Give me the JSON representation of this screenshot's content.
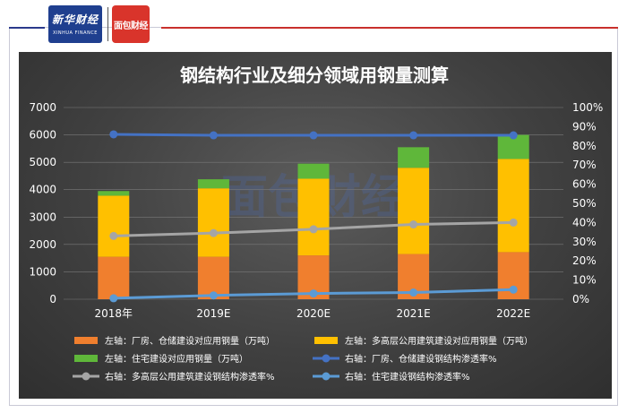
{
  "branding": {
    "logo_left_text": "新华财经",
    "logo_left_sub": "XINHUA FINANCE",
    "logo_right_text": "面包财经",
    "watermark": "面包财经"
  },
  "chart_data": {
    "type": "bar",
    "title": "钢结构行业及细分领域用钢量测算",
    "categories": [
      "2018年",
      "2019E",
      "2020E",
      "2021E",
      "2022E"
    ],
    "y_left": {
      "min": 0,
      "max": 7000,
      "ticks": [
        0,
        1000,
        2000,
        3000,
        4000,
        5000,
        6000,
        7000
      ]
    },
    "y_right": {
      "min": 0,
      "max": 100,
      "ticks": [
        "0%",
        "10%",
        "20%",
        "30%",
        "40%",
        "50%",
        "60%",
        "70%",
        "80%",
        "90%",
        "100%"
      ]
    },
    "stacked_bars": [
      {
        "name": "左轴：厂房、仓储建设对应用钢量（万吨）",
        "color": "#f07f2e",
        "values": [
          1550,
          1550,
          1600,
          1650,
          1720
        ]
      },
      {
        "name": "左轴：多高层公用建筑建设对应用钢量（万吨）",
        "color": "#ffc000",
        "values": [
          2230,
          2500,
          2800,
          3150,
          3400
        ]
      },
      {
        "name": "左轴：住宅建设对应用钢量（万吨）",
        "color": "#5fb73a",
        "values": [
          170,
          330,
          550,
          750,
          880
        ]
      }
    ],
    "lines": [
      {
        "name": "右轴：厂房、仓储建设钢结构渗透率%",
        "color": "#4472c4",
        "values": [
          86,
          85.5,
          85.5,
          85.5,
          85.5
        ]
      },
      {
        "name": "右轴：多高层公用建筑建设钢结构渗透率%",
        "color": "#a5a5a5",
        "values": [
          33,
          34.5,
          36.5,
          39,
          40
        ]
      },
      {
        "name": "右轴：住宅建设钢结构渗透率%",
        "color": "#5b9bd5",
        "values": [
          0.5,
          2,
          3,
          3.5,
          5
        ]
      }
    ],
    "grid": true,
    "legend_position": "bottom"
  }
}
